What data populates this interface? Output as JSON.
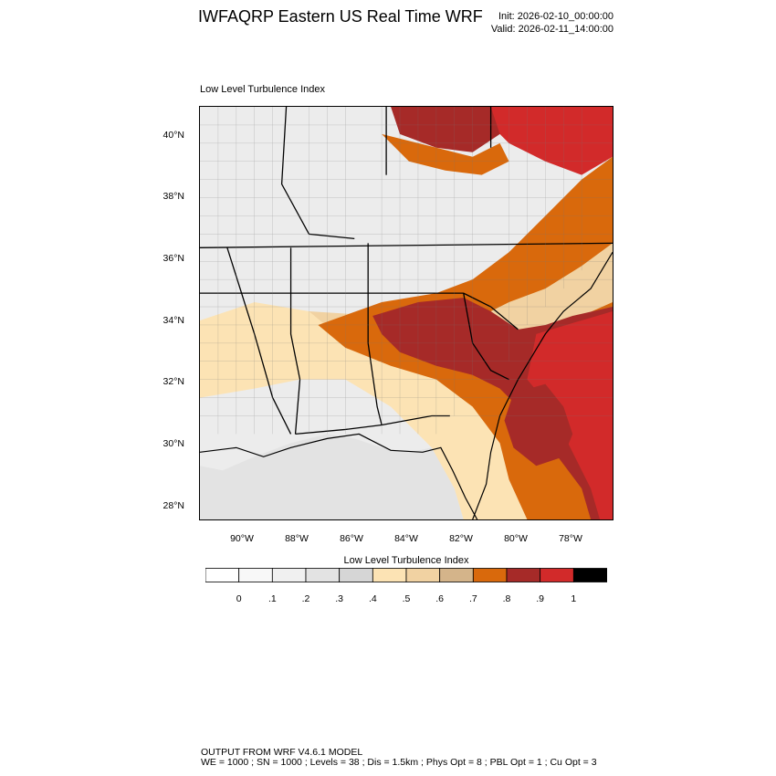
{
  "header": {
    "title": "IWFAQRP Eastern US Real Time WRF",
    "init": "Init: 2026-02-10_00:00:00",
    "valid": "Valid: 2026-02-11_14:00:00"
  },
  "map": {
    "field_label": "Low Level Turbulence Index",
    "lat_labels": [
      "40°N",
      "38°N",
      "36°N",
      "34°N",
      "32°N",
      "30°N",
      "28°N"
    ],
    "lon_labels": [
      "90°W",
      "88°W",
      "86°W",
      "84°W",
      "82°W",
      "80°W",
      "78°W"
    ],
    "colors": {
      "ocean_low": "#e3e3e3",
      "land_low": "#ececec",
      "moderate": "#fce3b4",
      "elevated": "#f1d2a2",
      "tan": "#d4b48a",
      "orange": "#d9690c",
      "dark_red": "#a62a28",
      "red": "#d22a2a",
      "boundary": "#000000"
    }
  },
  "colorbar": {
    "title": "Low Level Turbulence Index",
    "labels": [
      "0",
      ".1",
      ".2",
      ".3",
      ".4",
      ".5",
      ".6",
      ".7",
      ".8",
      ".9",
      "1"
    ],
    "colors": [
      "#ffffff",
      "#f8f8f8",
      "#f0f0f0",
      "#e3e3e3",
      "#d6d6d6",
      "#fce3b4",
      "#f1d2a2",
      "#d4b48a",
      "#d9690c",
      "#a62a28",
      "#d22a2a",
      "#000000"
    ]
  },
  "footer": {
    "line1": "OUTPUT FROM WRF V4.6.1 MODEL",
    "line2": "WE = 1000 ; SN = 1000 ; Levels = 38 ; Dis = 1.5km ; Phys Opt = 8 ; PBL Opt = 1 ; Cu Opt = 3"
  }
}
